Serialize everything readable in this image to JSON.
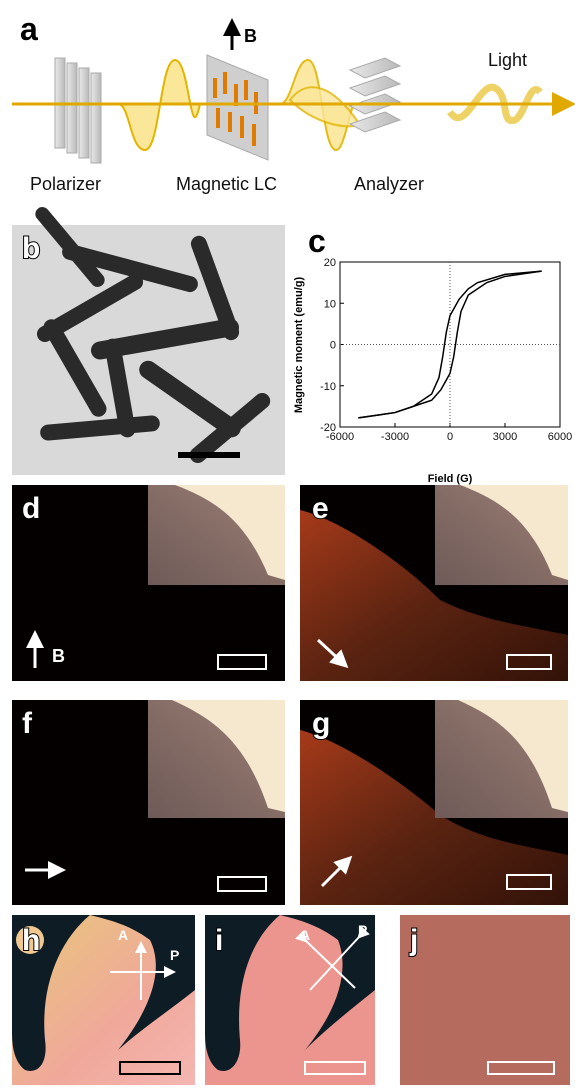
{
  "panel_a": {
    "label": "a",
    "field": "B",
    "light": "Light",
    "components": [
      "Polarizer",
      "Magnetic LC",
      "Analyzer"
    ]
  },
  "panel_b": {
    "label": "b"
  },
  "chart_data": {
    "type": "line",
    "label": "c",
    "x_label": "Field (G)",
    "y_label": "Magnetic moment (emu/g)",
    "xlim": [
      -6000,
      6000
    ],
    "ylim": [
      -20,
      20
    ],
    "xticks": [
      -6000,
      -3000,
      0,
      3000,
      6000
    ],
    "yticks": [
      -20,
      -10,
      0,
      10,
      20
    ],
    "series": [
      {
        "color": "#000000",
        "x": [
          5000,
          3000,
          1500,
          1000,
          500,
          0,
          -200,
          -400,
          -600,
          -1000,
          -2000,
          -3000,
          -5000
        ],
        "values": [
          17.8,
          17,
          15,
          13.5,
          11,
          7,
          3,
          -3,
          -8,
          -12,
          -15,
          -16.5,
          -17.8
        ]
      },
      {
        "color": "#000000",
        "x": [
          -5000,
          -3000,
          -2000,
          -1000,
          -500,
          0,
          200,
          400,
          600,
          1000,
          2000,
          3000,
          5000
        ],
        "values": [
          -17.8,
          -16.5,
          -15,
          -13.5,
          -11,
          -7,
          -3,
          3,
          8,
          12,
          15,
          16.5,
          17.8
        ]
      }
    ]
  },
  "panel_d": {
    "label": "d",
    "field": "B"
  },
  "panel_e": {
    "label": "e"
  },
  "panel_f": {
    "label": "f"
  },
  "panel_g": {
    "label": "g"
  },
  "panel_h": {
    "label": "h",
    "analyzer": "A",
    "polarizer": "P"
  },
  "panel_i": {
    "label": "i",
    "analyzer": "A",
    "polarizer": "P"
  },
  "panel_j": {
    "label": "j"
  }
}
